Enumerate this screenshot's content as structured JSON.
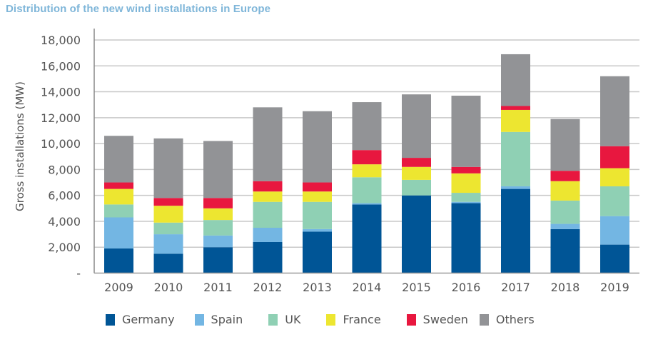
{
  "title": "Distribution of the new wind installations in Europe",
  "chart_data": {
    "type": "bar",
    "stacked": true,
    "title": "Distribution of the new wind installations in Europe",
    "xlabel": "",
    "ylabel": "Gross installations (MW)",
    "ylim": [
      0,
      18000
    ],
    "yticks": [
      0,
      2000,
      4000,
      6000,
      8000,
      10000,
      12000,
      14000,
      16000,
      18000
    ],
    "ytick_labels": [
      "-",
      "2,000",
      "4,000",
      "6,000",
      "8,000",
      "10,000",
      "12,000",
      "14,000",
      "16,000",
      "18,000"
    ],
    "grid": true,
    "legend_position": "bottom",
    "categories": [
      "2009",
      "2010",
      "2011",
      "2012",
      "2013",
      "2014",
      "2015",
      "2016",
      "2017",
      "2018",
      "2019"
    ],
    "series": [
      {
        "name": "Germany",
        "color": "#005596",
        "values": [
          1900,
          1500,
          2000,
          2400,
          3200,
          5300,
          6000,
          5400,
          6500,
          3400,
          2200
        ]
      },
      {
        "name": "Spain",
        "color": "#73b6e3",
        "values": [
          2400,
          1500,
          900,
          1100,
          200,
          100,
          0,
          100,
          200,
          400,
          2200
        ]
      },
      {
        "name": "UK",
        "color": "#8fd0b4",
        "values": [
          1000,
          900,
          1200,
          2000,
          2100,
          2000,
          1200,
          700,
          4200,
          1800,
          2300
        ]
      },
      {
        "name": "France",
        "color": "#ede630",
        "values": [
          1200,
          1300,
          900,
          800,
          800,
          1000,
          1000,
          1500,
          1700,
          1500,
          1400
        ]
      },
      {
        "name": "Sweden",
        "color": "#e8173f",
        "values": [
          500,
          600,
          800,
          800,
          700,
          1100,
          700,
          500,
          300,
          800,
          1700
        ]
      },
      {
        "name": "Others",
        "color": "#929396",
        "values": [
          3600,
          4600,
          4400,
          5700,
          5500,
          3700,
          4900,
          5500,
          4000,
          4000,
          5400
        ]
      }
    ]
  }
}
